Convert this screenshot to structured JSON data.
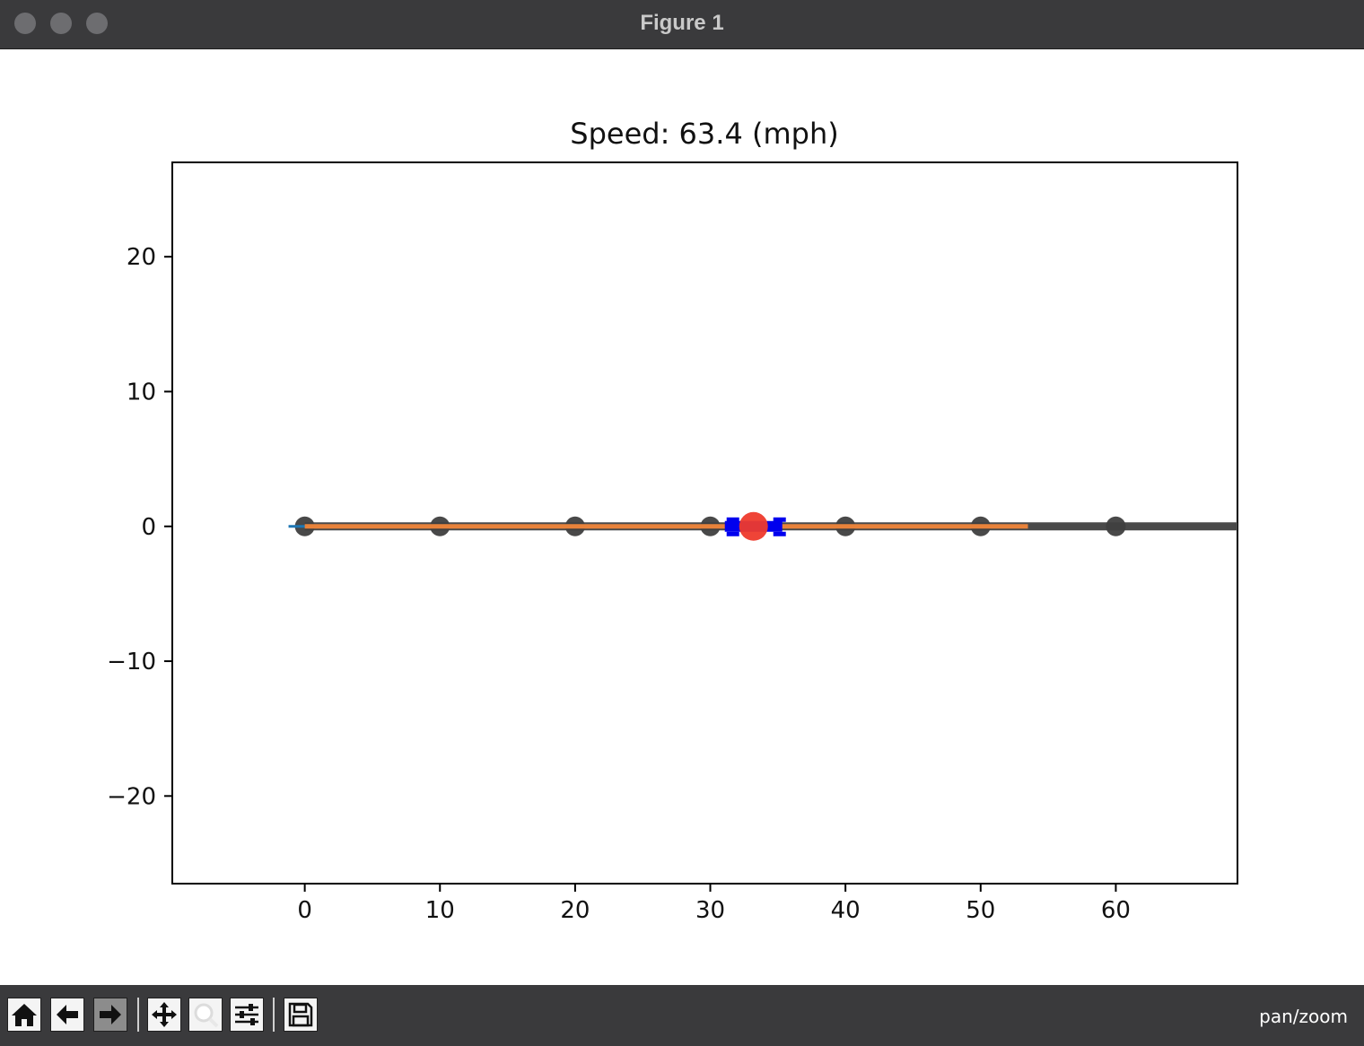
{
  "window": {
    "title": "Figure 1"
  },
  "toolbar": {
    "buttons": [
      {
        "name": "home-button",
        "icon": "home-icon",
        "enabled": true
      },
      {
        "name": "back-button",
        "icon": "arrow-left-icon",
        "enabled": true
      },
      {
        "name": "forward-button",
        "icon": "arrow-right-icon",
        "enabled": false
      },
      {
        "name": "pan-button",
        "icon": "move-icon",
        "enabled": true
      },
      {
        "name": "zoom-button",
        "icon": "zoom-icon",
        "enabled": true
      },
      {
        "name": "configure-subplots-button",
        "icon": "sliders-icon",
        "enabled": true
      },
      {
        "name": "save-button",
        "icon": "save-icon",
        "enabled": true
      }
    ],
    "mode": "pan/zoom"
  },
  "chart_data": {
    "type": "line",
    "title": "Speed: 63.4 (mph)",
    "xlabel": "",
    "ylabel": "",
    "xlim": [
      -9.8,
      69
    ],
    "ylim": [
      -26.5,
      27
    ],
    "x_ticks": [
      0,
      10,
      20,
      30,
      40,
      50,
      60
    ],
    "y_ticks": [
      20,
      10,
      0,
      -10,
      -20
    ],
    "x_tick_labels": [
      "0",
      "10",
      "20",
      "30",
      "40",
      "50",
      "60"
    ],
    "y_tick_labels": [
      "20",
      "10",
      "0",
      "−10",
      "−20"
    ],
    "grid": false,
    "series": [
      {
        "style": "line",
        "color": "#4a4a4a",
        "x": [
          0,
          69
        ],
        "y": [
          0,
          0
        ]
      },
      {
        "style": "points",
        "color": "#3f3f3f",
        "x": [
          0,
          10,
          20,
          30,
          40,
          50,
          60
        ],
        "y": [
          0,
          0,
          0,
          0,
          0,
          0,
          0
        ]
      },
      {
        "style": "line",
        "color": "#1f77b4",
        "x": [
          -1.2,
          1
        ],
        "y": [
          0,
          0
        ]
      },
      {
        "style": "line",
        "color": "#e8823a",
        "x": [
          0,
          53.5
        ],
        "y": [
          0,
          0
        ]
      }
    ],
    "vehicle": {
      "x": 33.2,
      "y": 0,
      "body_color": "#0000ee",
      "marker_color": "#ee3a2c"
    }
  }
}
